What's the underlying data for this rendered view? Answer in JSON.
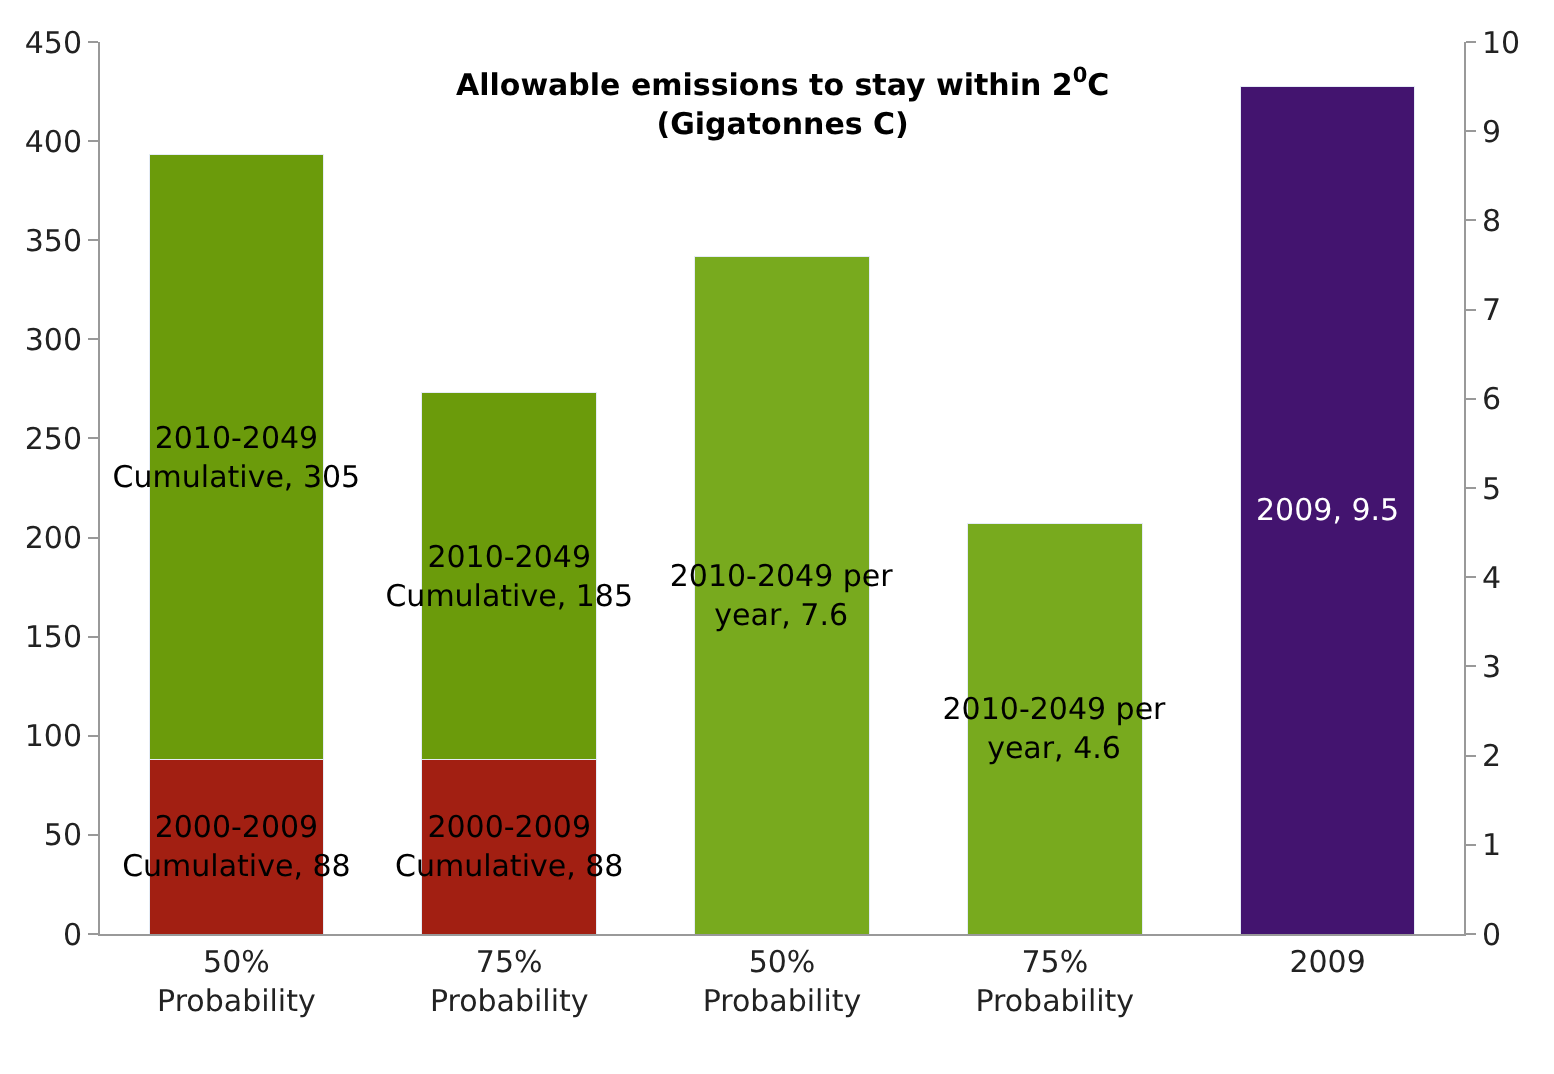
{
  "chart_data": {
    "type": "bar",
    "title": "Allowable emissions to stay within 2$^{0}$C\n(Gigatonnes C)",
    "categories": [
      "50%\nProbability",
      "75%\nProbability",
      "50%\nProbability",
      "75%\nProbability",
      "2009"
    ],
    "stacked": true,
    "series": [
      {
        "color": "#a21f12",
        "values": [
          88,
          88,
          null,
          null,
          null
        ],
        "value_labels": [
          "2000-2009\nCumulative, 88",
          "2000-2009\nCumulative, 88",
          null,
          null,
          null
        ]
      },
      {
        "color": "#6b9b0b",
        "values": [
          305,
          185,
          null,
          null,
          null
        ],
        "value_labels": [
          "2010-2049\nCumulative, 305",
          "2010-2049\nCumulative, 185",
          null,
          null,
          null
        ]
      },
      {
        "color": "#78aa1e",
        "axis": "y2",
        "values": [
          null,
          null,
          7.6,
          4.6,
          null
        ],
        "value_labels": [
          null,
          null,
          "2010-2049 per\nyear, 7.6",
          "2010-2049 per\nyear, 4.6",
          null
        ]
      },
      {
        "color": "#43146f",
        "axis": "y2",
        "values": [
          null,
          null,
          null,
          null,
          9.5
        ],
        "value_labels": [
          null,
          null,
          null,
          null,
          "2009, 9.5"
        ]
      }
    ],
    "ylim": [
      0,
      450
    ],
    "yticks": [
      0,
      50,
      100,
      150,
      200,
      250,
      300,
      350,
      400,
      450
    ],
    "y2lim": [
      0,
      10
    ],
    "y2ticks": [
      0,
      1,
      2,
      3,
      4,
      5,
      6,
      7,
      8,
      9,
      10
    ],
    "data_labels": false
  }
}
